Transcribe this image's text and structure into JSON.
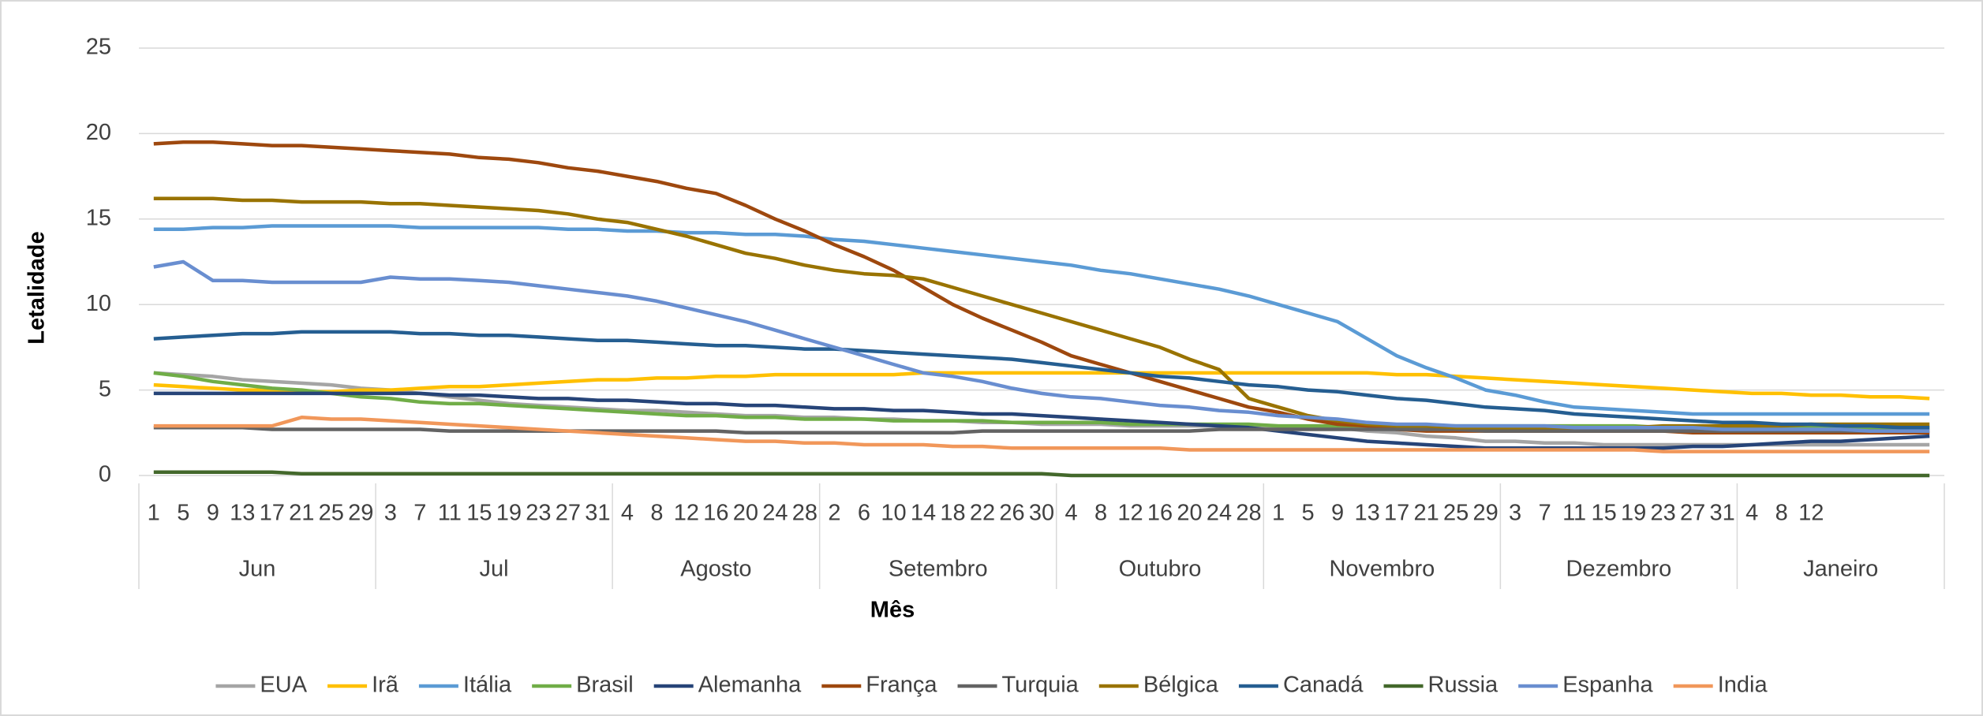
{
  "chart_data": {
    "type": "line",
    "y_axis_label": "Letalidade",
    "x_axis_label": "Mês",
    "categories": [
      "1",
      "5",
      "9",
      "13",
      "17",
      "21",
      "25",
      "29",
      "3",
      "7",
      "11",
      "15",
      "19",
      "23",
      "27",
      "31",
      "4",
      "8",
      "12",
      "16",
      "20",
      "24",
      "28",
      "2",
      "6",
      "10",
      "14",
      "18",
      "22",
      "26",
      "30",
      "4",
      "8",
      "12",
      "16",
      "20",
      "24",
      "28",
      "1",
      "5",
      "9",
      "13",
      "17",
      "21",
      "25",
      "29",
      "3",
      "7",
      "11",
      "15",
      "19",
      "23",
      "27",
      "31",
      "4",
      "8",
      "12",
      null,
      null,
      null,
      null
    ],
    "months": [
      "Jun",
      "Jul",
      "Agosto",
      "Setembro",
      "Outubro",
      "Novembro",
      "Dezembro",
      "Janeiro"
    ],
    "ylim": [
      0,
      25
    ],
    "yticks": [
      0,
      5,
      10,
      15,
      20,
      25
    ],
    "grid": true,
    "legend": "bottom",
    "series": [
      {
        "name": "EUA",
        "color": "#a5a5a5",
        "values": [
          6.0,
          5.9,
          5.8,
          5.6,
          5.5,
          5.4,
          5.3,
          5.1,
          5.0,
          4.8,
          4.6,
          4.4,
          4.2,
          4.1,
          4.0,
          3.9,
          3.8,
          3.8,
          3.7,
          3.6,
          3.5,
          3.5,
          3.4,
          3.4,
          3.3,
          3.3,
          3.2,
          3.2,
          3.1,
          3.1,
          3.0,
          3.0,
          3.0,
          2.9,
          2.9,
          2.9,
          2.9,
          2.9,
          2.8,
          2.8,
          2.8,
          2.6,
          2.5,
          2.3,
          2.2,
          2.0,
          2.0,
          1.9,
          1.9,
          1.8,
          1.8,
          1.8,
          1.8,
          1.8,
          1.8,
          1.8,
          1.8,
          1.8,
          1.8,
          1.8,
          1.8
        ]
      },
      {
        "name": "Irã",
        "color": "#ffc000",
        "values": [
          5.3,
          5.2,
          5.1,
          5.0,
          5.0,
          4.9,
          4.9,
          5.0,
          5.0,
          5.1,
          5.2,
          5.2,
          5.3,
          5.4,
          5.5,
          5.6,
          5.6,
          5.7,
          5.7,
          5.8,
          5.8,
          5.9,
          5.9,
          5.9,
          5.9,
          5.9,
          6.0,
          6.0,
          6.0,
          6.0,
          6.0,
          6.0,
          6.0,
          6.0,
          6.0,
          6.0,
          6.0,
          6.0,
          6.0,
          6.0,
          6.0,
          6.0,
          5.9,
          5.9,
          5.8,
          5.7,
          5.6,
          5.5,
          5.4,
          5.3,
          5.2,
          5.1,
          5.0,
          4.9,
          4.8,
          4.8,
          4.7,
          4.7,
          4.6,
          4.6,
          4.5
        ]
      },
      {
        "name": "Itália",
        "color": "#5b9bd5",
        "values": [
          14.4,
          14.4,
          14.5,
          14.5,
          14.6,
          14.6,
          14.6,
          14.6,
          14.6,
          14.5,
          14.5,
          14.5,
          14.5,
          14.5,
          14.4,
          14.4,
          14.3,
          14.3,
          14.2,
          14.2,
          14.1,
          14.1,
          14.0,
          13.8,
          13.7,
          13.5,
          13.3,
          13.1,
          12.9,
          12.7,
          12.5,
          12.3,
          12.0,
          11.8,
          11.5,
          11.2,
          10.9,
          10.5,
          10.0,
          9.5,
          9.0,
          8.0,
          7.0,
          6.3,
          5.7,
          5.0,
          4.7,
          4.3,
          4.0,
          3.9,
          3.8,
          3.7,
          3.6,
          3.6,
          3.6,
          3.6,
          3.6,
          3.6,
          3.6,
          3.6,
          3.6
        ]
      },
      {
        "name": "Brasil",
        "color": "#70ad47",
        "values": [
          6.0,
          5.8,
          5.5,
          5.3,
          5.1,
          5.0,
          4.8,
          4.6,
          4.5,
          4.3,
          4.2,
          4.2,
          4.1,
          4.0,
          3.9,
          3.8,
          3.7,
          3.6,
          3.5,
          3.5,
          3.4,
          3.4,
          3.3,
          3.3,
          3.3,
          3.2,
          3.2,
          3.2,
          3.2,
          3.1,
          3.1,
          3.1,
          3.1,
          3.0,
          3.0,
          3.0,
          3.0,
          3.0,
          2.9,
          2.9,
          2.9,
          2.9,
          2.9,
          2.9,
          2.9,
          2.9,
          2.9,
          2.9,
          2.9,
          2.9,
          2.9,
          2.8,
          2.8,
          2.8,
          2.8,
          2.8,
          2.8,
          2.8,
          2.8,
          2.8,
          2.8
        ]
      },
      {
        "name": "Alemanha",
        "color": "#264478",
        "values": [
          4.8,
          4.8,
          4.8,
          4.8,
          4.8,
          4.8,
          4.8,
          4.8,
          4.8,
          4.8,
          4.7,
          4.7,
          4.6,
          4.5,
          4.5,
          4.4,
          4.4,
          4.3,
          4.2,
          4.2,
          4.1,
          4.1,
          4.0,
          3.9,
          3.9,
          3.8,
          3.8,
          3.7,
          3.6,
          3.6,
          3.5,
          3.4,
          3.3,
          3.2,
          3.1,
          3.0,
          2.9,
          2.8,
          2.6,
          2.4,
          2.2,
          2.0,
          1.9,
          1.8,
          1.7,
          1.6,
          1.6,
          1.6,
          1.6,
          1.6,
          1.6,
          1.6,
          1.7,
          1.7,
          1.8,
          1.9,
          2.0,
          2.0,
          2.1,
          2.2,
          2.3
        ]
      },
      {
        "name": "França",
        "color": "#9e480e",
        "values": [
          19.4,
          19.5,
          19.5,
          19.4,
          19.3,
          19.3,
          19.2,
          19.1,
          19.0,
          18.9,
          18.8,
          18.6,
          18.5,
          18.3,
          18.0,
          17.8,
          17.5,
          17.2,
          16.8,
          16.5,
          15.8,
          15.0,
          14.3,
          13.5,
          12.8,
          12.0,
          11.0,
          10.0,
          9.2,
          8.5,
          7.8,
          7.0,
          6.5,
          6.0,
          5.5,
          5.0,
          4.5,
          4.0,
          3.7,
          3.3,
          3.0,
          2.9,
          2.7,
          2.6,
          2.6,
          2.6,
          2.6,
          2.6,
          2.6,
          2.6,
          2.6,
          2.6,
          2.5,
          2.5,
          2.5,
          2.5,
          2.5,
          2.5,
          2.5,
          2.5,
          2.5
        ]
      },
      {
        "name": "Turquia",
        "color": "#636363",
        "values": [
          2.8,
          2.8,
          2.8,
          2.8,
          2.7,
          2.7,
          2.7,
          2.7,
          2.7,
          2.7,
          2.6,
          2.6,
          2.6,
          2.6,
          2.6,
          2.6,
          2.6,
          2.6,
          2.6,
          2.6,
          2.5,
          2.5,
          2.5,
          2.5,
          2.5,
          2.5,
          2.5,
          2.5,
          2.6,
          2.6,
          2.6,
          2.6,
          2.6,
          2.6,
          2.6,
          2.6,
          2.7,
          2.7,
          2.7,
          2.7,
          2.7,
          2.7,
          2.7,
          2.7,
          2.7,
          2.6,
          2.6,
          2.6,
          2.6,
          2.6,
          2.6,
          2.6,
          2.6,
          2.6,
          2.6,
          2.6,
          2.6,
          2.6,
          2.6,
          2.6,
          2.6
        ]
      },
      {
        "name": "Bélgica",
        "color": "#997300",
        "values": [
          16.2,
          16.2,
          16.2,
          16.1,
          16.1,
          16.0,
          16.0,
          16.0,
          15.9,
          15.9,
          15.8,
          15.7,
          15.6,
          15.5,
          15.3,
          15.0,
          14.8,
          14.4,
          14.0,
          13.5,
          13.0,
          12.7,
          12.3,
          12.0,
          11.8,
          11.7,
          11.5,
          11.0,
          10.5,
          10.0,
          9.5,
          9.0,
          8.5,
          8.0,
          7.5,
          6.8,
          6.2,
          4.5,
          4.0,
          3.5,
          3.2,
          3.0,
          2.9,
          2.9,
          2.8,
          2.8,
          2.8,
          2.8,
          2.8,
          2.8,
          2.8,
          2.9,
          2.9,
          2.9,
          2.9,
          2.9,
          3.0,
          3.0,
          3.0,
          3.0,
          3.0
        ]
      },
      {
        "name": "Canadá",
        "color": "#255e91",
        "values": [
          8.0,
          8.1,
          8.2,
          8.3,
          8.3,
          8.4,
          8.4,
          8.4,
          8.4,
          8.3,
          8.3,
          8.2,
          8.2,
          8.1,
          8.0,
          7.9,
          7.9,
          7.8,
          7.7,
          7.6,
          7.6,
          7.5,
          7.4,
          7.4,
          7.3,
          7.2,
          7.1,
          7.0,
          6.9,
          6.8,
          6.6,
          6.4,
          6.2,
          6.0,
          5.8,
          5.7,
          5.5,
          5.3,
          5.2,
          5.0,
          4.9,
          4.7,
          4.5,
          4.4,
          4.2,
          4.0,
          3.9,
          3.8,
          3.6,
          3.5,
          3.4,
          3.3,
          3.2,
          3.1,
          3.1,
          3.0,
          3.0,
          2.9,
          2.9,
          2.8,
          2.8
        ]
      },
      {
        "name": "Russia",
        "color": "#43682b",
        "values": [
          0.2,
          0.2,
          0.2,
          0.2,
          0.2,
          0.1,
          0.1,
          0.1,
          0.1,
          0.1,
          0.1,
          0.1,
          0.1,
          0.1,
          0.1,
          0.1,
          0.1,
          0.1,
          0.1,
          0.1,
          0.1,
          0.1,
          0.1,
          0.1,
          0.1,
          0.1,
          0.1,
          0.1,
          0.1,
          0.1,
          0.1,
          0.0,
          0.0,
          0.0,
          0.0,
          0.0,
          0.0,
          0.0,
          0.0,
          0.0,
          0.0,
          0.0,
          0.0,
          0.0,
          0.0,
          0.0,
          0.0,
          0.0,
          0.0,
          0.0,
          0.0,
          0.0,
          0.0,
          0.0,
          0.0,
          0.0,
          0.0,
          0.0,
          0.0,
          0.0,
          0.0
        ]
      },
      {
        "name": "Espanha",
        "color": "#698ed0",
        "values": [
          12.2,
          12.5,
          11.4,
          11.4,
          11.3,
          11.3,
          11.3,
          11.3,
          11.6,
          11.5,
          11.5,
          11.4,
          11.3,
          11.1,
          10.9,
          10.7,
          10.5,
          10.2,
          9.8,
          9.4,
          9.0,
          8.5,
          8.0,
          7.5,
          7.0,
          6.5,
          6.0,
          5.8,
          5.5,
          5.1,
          4.8,
          4.6,
          4.5,
          4.3,
          4.1,
          4.0,
          3.8,
          3.7,
          3.5,
          3.4,
          3.3,
          3.1,
          3.0,
          3.0,
          2.9,
          2.9,
          2.9,
          2.9,
          2.8,
          2.8,
          2.8,
          2.8,
          2.8,
          2.7,
          2.7,
          2.7,
          2.7,
          2.7,
          2.6,
          2.6,
          2.6
        ]
      },
      {
        "name": "India",
        "color": "#f1975a",
        "values": [
          2.9,
          2.9,
          2.9,
          2.9,
          2.9,
          3.4,
          3.3,
          3.3,
          3.2,
          3.1,
          3.0,
          2.9,
          2.8,
          2.7,
          2.6,
          2.5,
          2.4,
          2.3,
          2.2,
          2.1,
          2.0,
          2.0,
          1.9,
          1.9,
          1.8,
          1.8,
          1.8,
          1.7,
          1.7,
          1.6,
          1.6,
          1.6,
          1.6,
          1.6,
          1.6,
          1.5,
          1.5,
          1.5,
          1.5,
          1.5,
          1.5,
          1.5,
          1.5,
          1.5,
          1.5,
          1.5,
          1.5,
          1.5,
          1.5,
          1.5,
          1.5,
          1.4,
          1.4,
          1.4,
          1.4,
          1.4,
          1.4,
          1.4,
          1.4,
          1.4,
          1.4
        ]
      }
    ]
  }
}
